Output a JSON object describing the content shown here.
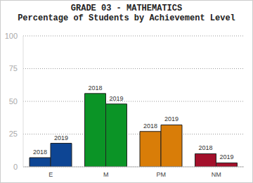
{
  "chart_data": {
    "type": "bar",
    "title": "GRADE 03 - MATHEMATICS",
    "subtitle": "Percentage of Students by Achievement Level",
    "categories": [
      "E",
      "M",
      "PM",
      "NM"
    ],
    "series": [
      {
        "name": "2018",
        "values": [
          7,
          56,
          27,
          10
        ]
      },
      {
        "name": "2019",
        "values": [
          18,
          48,
          32,
          3
        ]
      }
    ],
    "colors": [
      "#0d4594",
      "#0b9426",
      "#d97d08",
      "#a3102b"
    ],
    "ylim": [
      0,
      100
    ],
    "yticks": [
      0,
      25,
      50,
      75,
      100
    ],
    "grid": true
  }
}
